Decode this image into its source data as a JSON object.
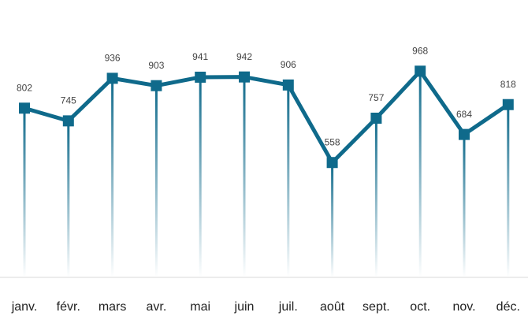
{
  "chart_data": {
    "type": "line",
    "categories": [
      "janv.",
      "févr.",
      "mars",
      "avr.",
      "mai",
      "juin",
      "juil.",
      "août",
      "sept.",
      "oct.",
      "nov.",
      "déc."
    ],
    "values": [
      802,
      745,
      936,
      903,
      941,
      942,
      906,
      558,
      757,
      968,
      684,
      818
    ],
    "color": "#0f6a8b",
    "ylim": [
      0,
      1100
    ]
  }
}
